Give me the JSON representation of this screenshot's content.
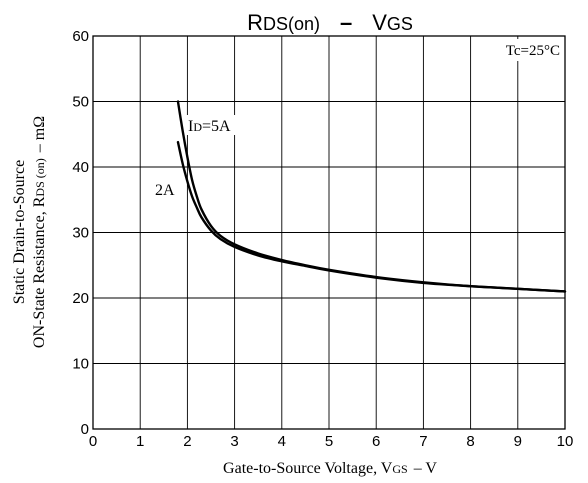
{
  "chart_data": {
    "type": "line",
    "title": {
      "main": "R",
      "main_sub": "DS(on)",
      "separator": "–",
      "second": "V",
      "second_sub": "GS"
    },
    "xlabel": {
      "text": "Gate-to-Source Voltage, V",
      "sub": "GS",
      "unit": "–  V"
    },
    "ylabel": {
      "line1": "Static Drain-to-Source",
      "line2_prefix": "ON-State Resistance, R",
      "line2_sub": "DS (on)",
      "line2_unit": "–  mΩ"
    },
    "xlim": [
      0,
      10
    ],
    "ylim": [
      0,
      60
    ],
    "x_ticks": [
      "0",
      "1",
      "2",
      "3",
      "4",
      "5",
      "6",
      "7",
      "8",
      "9",
      "10"
    ],
    "y_ticks": [
      "0",
      "10",
      "20",
      "30",
      "40",
      "50",
      "60"
    ],
    "grid": true,
    "condition": "Tc=25°C",
    "series": [
      {
        "name": "5A",
        "label_prefix": "I",
        "label_sub": "D",
        "label_suffix": "=5A",
        "x": [
          1.8,
          1.9,
          2.0,
          2.1,
          2.2,
          2.3,
          2.5,
          2.7,
          3.0,
          3.5,
          4.0,
          4.5,
          5.0,
          6.0,
          7.0,
          8.0,
          9.0,
          10.0
        ],
        "y": [
          50.0,
          45.5,
          41.5,
          38.0,
          35.5,
          33.5,
          31.0,
          29.5,
          28.2,
          26.8,
          25.8,
          25.0,
          24.3,
          23.2,
          22.4,
          21.8,
          21.4,
          21.0
        ]
      },
      {
        "name": "2A",
        "label": "2A",
        "x": [
          1.8,
          1.9,
          2.0,
          2.1,
          2.2,
          2.3,
          2.5,
          2.7,
          3.0,
          3.5,
          4.0,
          4.5,
          5.0,
          6.0,
          7.0,
          8.0,
          9.0,
          10.0
        ],
        "y": [
          43.8,
          40.5,
          37.8,
          35.5,
          33.8,
          32.3,
          30.3,
          29.0,
          27.8,
          26.5,
          25.6,
          24.9,
          24.2,
          23.1,
          22.3,
          21.8,
          21.4,
          21.0
        ]
      }
    ]
  }
}
